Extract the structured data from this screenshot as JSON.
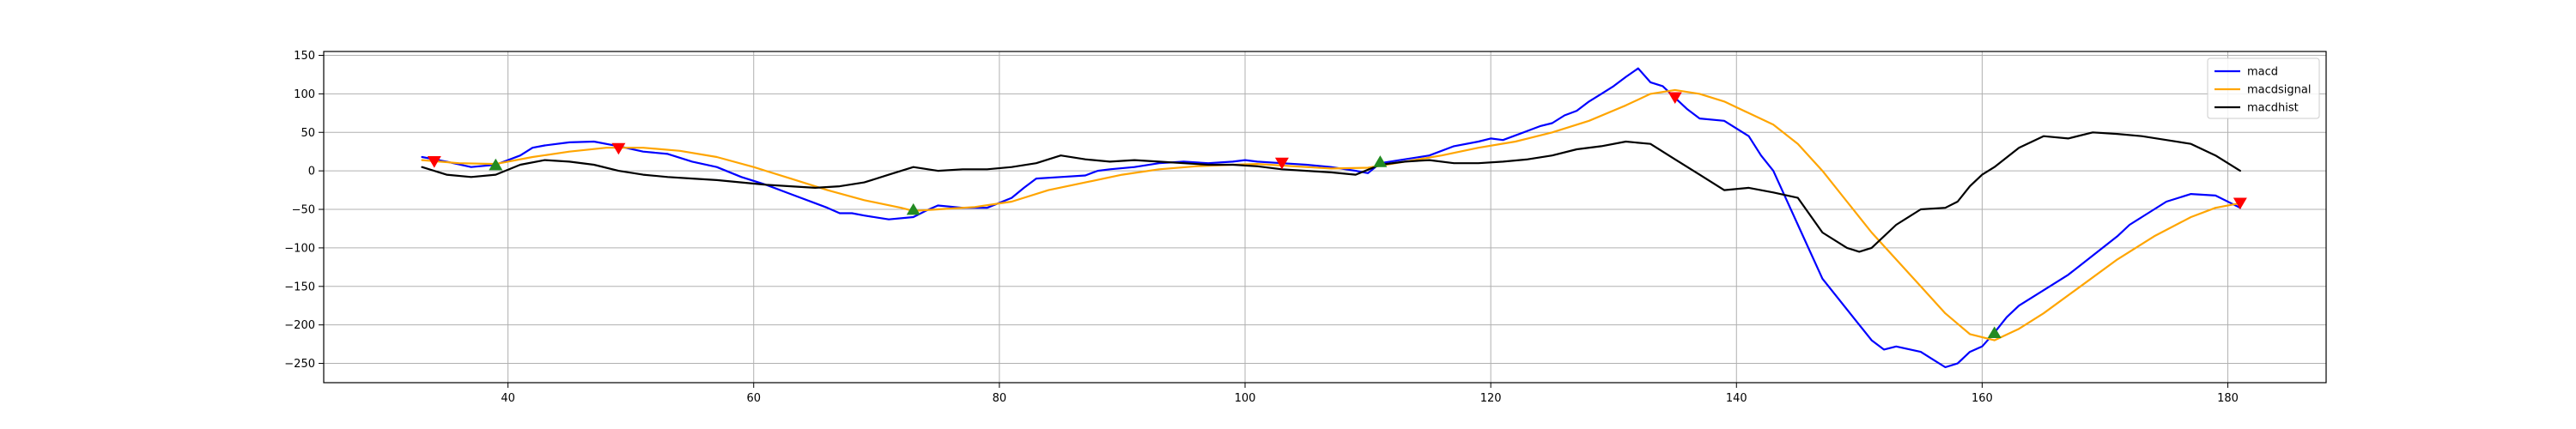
{
  "chart_data": {
    "type": "line",
    "title": "",
    "xlabel": "",
    "ylabel": "",
    "xlim": [
      25,
      188
    ],
    "ylim": [
      -275,
      155
    ],
    "x_ticks": [
      40,
      60,
      80,
      100,
      120,
      140,
      160,
      180
    ],
    "y_ticks": [
      150,
      100,
      50,
      0,
      -50,
      -100,
      -150,
      -200,
      -250
    ],
    "grid": true,
    "legend_position": "top-right",
    "series": [
      {
        "name": "macd",
        "color": "#0000ff",
        "x": [
          33,
          35,
          37,
          39,
          41,
          42,
          43,
          45,
          47,
          49,
          51,
          53,
          55,
          57,
          59,
          61,
          63,
          65,
          66,
          67,
          68,
          69,
          71,
          73,
          74,
          75,
          77,
          79,
          81,
          82,
          83,
          85,
          87,
          88,
          89,
          91,
          93,
          95,
          97,
          99,
          100,
          101,
          103,
          105,
          107,
          109,
          110,
          111,
          113,
          115,
          117,
          119,
          120,
          121,
          123,
          124,
          125,
          126,
          127,
          128,
          129,
          130,
          131,
          132,
          133,
          134,
          135,
          136,
          137,
          139,
          141,
          142,
          143,
          145,
          147,
          149,
          151,
          152,
          153,
          155,
          156,
          157,
          158,
          159,
          160,
          161,
          162,
          163,
          165,
          167,
          169,
          171,
          172,
          173,
          175,
          177,
          179,
          181
        ],
        "y": [
          18,
          12,
          5,
          8,
          20,
          30,
          33,
          37,
          38,
          32,
          25,
          22,
          12,
          5,
          -8,
          -18,
          -30,
          -42,
          -48,
          -55,
          -55,
          -58,
          -63,
          -60,
          -52,
          -45,
          -48,
          -48,
          -35,
          -22,
          -10,
          -8,
          -6,
          0,
          2,
          5,
          10,
          12,
          10,
          12,
          14,
          12,
          10,
          8,
          5,
          0,
          -3,
          10,
          15,
          20,
          32,
          38,
          42,
          40,
          52,
          58,
          62,
          72,
          78,
          90,
          100,
          110,
          122,
          133,
          115,
          110,
          95,
          80,
          68,
          65,
          45,
          20,
          0,
          -70,
          -140,
          -180,
          -220,
          -232,
          -228,
          -235,
          -245,
          -255,
          -250,
          -235,
          -228,
          -210,
          -190,
          -175,
          -155,
          -135,
          -110,
          -85,
          -70,
          -60,
          -40,
          -30,
          -32,
          -48
        ]
      },
      {
        "name": "macdsignal",
        "color": "#ffa500",
        "x": [
          33,
          36,
          39,
          42,
          45,
          48,
          51,
          54,
          57,
          60,
          63,
          66,
          69,
          72,
          73,
          75,
          78,
          81,
          84,
          87,
          90,
          93,
          96,
          99,
          101,
          104,
          107,
          110,
          113,
          116,
          119,
          122,
          125,
          128,
          131,
          133,
          135,
          137,
          139,
          141,
          143,
          145,
          147,
          149,
          151,
          153,
          155,
          157,
          159,
          161,
          163,
          165,
          168,
          171,
          174,
          177,
          179,
          181
        ],
        "y": [
          14,
          10,
          9,
          18,
          25,
          30,
          30,
          26,
          18,
          5,
          -10,
          -25,
          -38,
          -48,
          -52,
          -50,
          -47,
          -40,
          -25,
          -15,
          -5,
          2,
          6,
          8,
          9,
          6,
          3,
          4,
          12,
          20,
          30,
          38,
          50,
          65,
          85,
          100,
          105,
          100,
          90,
          75,
          60,
          35,
          0,
          -40,
          -80,
          -115,
          -150,
          -185,
          -212,
          -220,
          -205,
          -185,
          -150,
          -115,
          -85,
          -60,
          -48,
          -42
        ]
      },
      {
        "name": "macdhist",
        "color": "#000000",
        "x": [
          33,
          35,
          37,
          39,
          41,
          43,
          45,
          47,
          49,
          51,
          53,
          55,
          57,
          59,
          61,
          63,
          65,
          67,
          69,
          71,
          73,
          75,
          77,
          79,
          81,
          83,
          85,
          87,
          89,
          91,
          93,
          95,
          97,
          99,
          101,
          103,
          105,
          107,
          109,
          111,
          113,
          115,
          117,
          119,
          121,
          123,
          125,
          127,
          129,
          131,
          133,
          135,
          137,
          139,
          141,
          143,
          145,
          147,
          149,
          150,
          151,
          153,
          155,
          157,
          158,
          159,
          160,
          161,
          163,
          165,
          167,
          169,
          171,
          173,
          175,
          177,
          179,
          181
        ],
        "y": [
          5,
          -5,
          -8,
          -5,
          8,
          14,
          12,
          8,
          0,
          -5,
          -8,
          -10,
          -12,
          -15,
          -18,
          -20,
          -22,
          -20,
          -15,
          -5,
          5,
          0,
          2,
          2,
          5,
          10,
          20,
          15,
          12,
          14,
          12,
          10,
          8,
          8,
          6,
          2,
          0,
          -2,
          -5,
          8,
          12,
          14,
          10,
          10,
          12,
          15,
          20,
          28,
          32,
          38,
          35,
          15,
          -5,
          -25,
          -22,
          -28,
          -35,
          -80,
          -100,
          -105,
          -100,
          -70,
          -50,
          -48,
          -40,
          -20,
          -5,
          5,
          30,
          45,
          42,
          50,
          48,
          45,
          40,
          35,
          20,
          0
        ]
      }
    ],
    "sell_markers": {
      "color": "#ff0000",
      "symbol": "down-triangle",
      "points": [
        [
          34,
          12
        ],
        [
          49,
          29
        ],
        [
          103,
          10
        ],
        [
          135,
          95
        ],
        [
          181,
          -42
        ]
      ]
    },
    "buy_markers": {
      "color": "#228b22",
      "symbol": "up-triangle",
      "points": [
        [
          39,
          8
        ],
        [
          73,
          -50
        ],
        [
          111,
          12
        ],
        [
          161,
          -210
        ]
      ]
    }
  }
}
